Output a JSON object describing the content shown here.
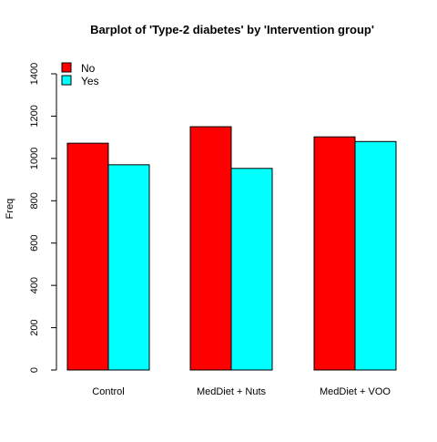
{
  "chart_data": {
    "type": "bar",
    "title": "Barplot of 'Type-2 diabetes' by 'Intervention group'",
    "xlabel": "",
    "ylabel": "Freq",
    "categories": [
      "Control",
      "MedDiet + Nuts",
      "MedDiet + VOO"
    ],
    "series": [
      {
        "name": "No",
        "color": "#ff0000",
        "values": [
          1072,
          1150,
          1102
        ]
      },
      {
        "name": "Yes",
        "color": "#00ffff",
        "values": [
          970,
          953,
          1080
        ]
      }
    ],
    "ylim": [
      0,
      1400
    ],
    "yticks": [
      0,
      200,
      400,
      600,
      800,
      1000,
      1200,
      1400
    ],
    "grid": false,
    "legend_position": "top-left"
  }
}
